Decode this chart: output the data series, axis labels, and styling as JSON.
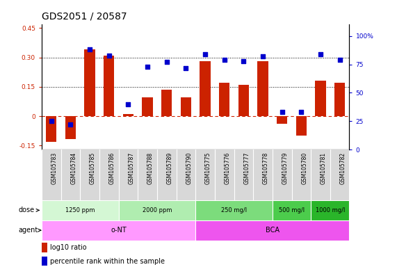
{
  "title": "GDS2051 / 20587",
  "samples": [
    "GSM105783",
    "GSM105784",
    "GSM105785",
    "GSM105786",
    "GSM105787",
    "GSM105788",
    "GSM105789",
    "GSM105790",
    "GSM105775",
    "GSM105776",
    "GSM105777",
    "GSM105778",
    "GSM105779",
    "GSM105780",
    "GSM105781",
    "GSM105782"
  ],
  "log10_ratio": [
    -0.13,
    -0.115,
    0.34,
    0.31,
    0.01,
    0.095,
    0.135,
    0.095,
    0.28,
    0.17,
    0.16,
    0.28,
    -0.04,
    -0.1,
    0.18,
    0.17
  ],
  "percentile_rank": [
    25,
    22,
    88,
    83,
    40,
    73,
    77,
    72,
    84,
    79,
    78,
    82,
    33,
    33,
    84,
    79
  ],
  "ylim_left": [
    -0.17,
    0.47
  ],
  "ylim_right": [
    0,
    110.588
  ],
  "yticks_left": [
    -0.15,
    0.0,
    0.15,
    0.3,
    0.45
  ],
  "yticks_right": [
    0,
    25,
    50,
    75,
    100
  ],
  "ytick_labels_left": [
    "-0.15",
    "0",
    "0.15",
    "0.30",
    "0.45"
  ],
  "ytick_labels_right": [
    "0",
    "25",
    "50",
    "75",
    "100%"
  ],
  "dotted_lines": [
    0.15,
    0.3
  ],
  "dose_groups": [
    {
      "label": "1250 ppm",
      "start": 0,
      "end": 4,
      "color": "#d4f7d4"
    },
    {
      "label": "2000 ppm",
      "start": 4,
      "end": 8,
      "color": "#b0edb0"
    },
    {
      "label": "250 mg/l",
      "start": 8,
      "end": 12,
      "color": "#7cdc7c"
    },
    {
      "label": "500 mg/l",
      "start": 12,
      "end": 14,
      "color": "#4ccc4c"
    },
    {
      "label": "1000 mg/l",
      "start": 14,
      "end": 16,
      "color": "#2ab52a"
    }
  ],
  "agent_groups": [
    {
      "label": "o-NT",
      "start": 0,
      "end": 8,
      "color": "#ff99ff"
    },
    {
      "label": "BCA",
      "start": 8,
      "end": 16,
      "color": "#ee55ee"
    }
  ],
  "bar_color": "#cc2200",
  "dot_color": "#0000cc",
  "legend_text1": "log10 ratio",
  "legend_text2": "percentile rank within the sample",
  "dose_label": "dose",
  "agent_label": "agent",
  "title_fontsize": 10,
  "tick_fontsize": 6.5,
  "label_fontsize": 7.5
}
